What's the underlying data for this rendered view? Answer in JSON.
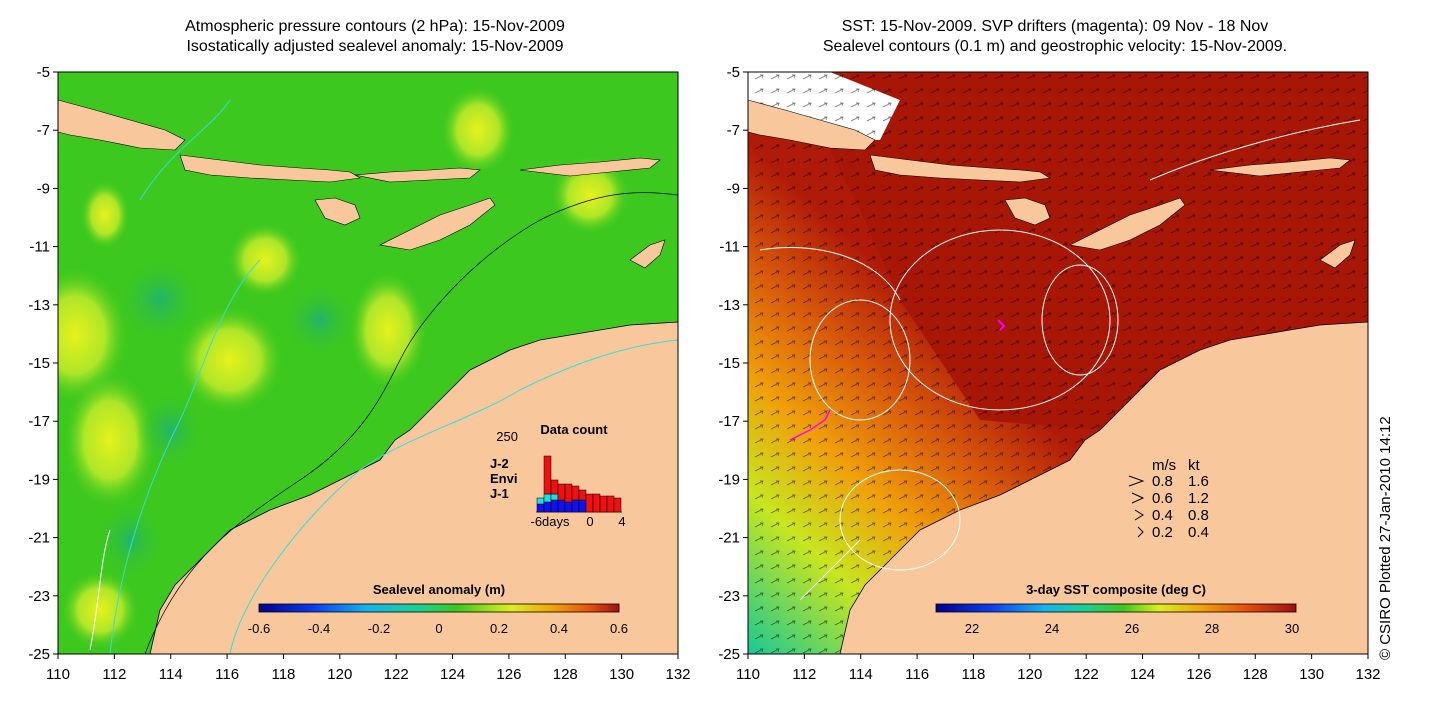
{
  "left_panel": {
    "title_line1": "Atmospheric pressure contours (2 hPa): 15-Nov-2009",
    "title_line2": "Isostatically adjusted sealevel anomaly: 15-Nov-2009",
    "colorbar": {
      "title": "Sealevel anomaly (m)",
      "ticks": [
        "-0.6",
        "-0.4",
        "-0.2",
        "0",
        "0.2",
        "0.4",
        "0.6"
      ]
    },
    "data_count_inset": {
      "title": "Data count",
      "ymax_label": "250",
      "x_labels": [
        "-6days",
        "0",
        "4"
      ],
      "legend": [
        {
          "label": "J-2",
          "color": "#ee1111"
        },
        {
          "label": "Envi",
          "color": "#22dddd"
        },
        {
          "label": "J-1",
          "color": "#1111ee"
        }
      ]
    }
  },
  "right_panel": {
    "title_line1": "SST: 15-Nov-2009. SVP drifters (magenta): 09 Nov - 18 Nov",
    "title_line2": "Sealevel contours (0.1 m) and geostrophic velocity: 15-Nov-2009.",
    "colorbar": {
      "title": "3-day SST composite (deg C)",
      "ticks": [
        "22",
        "24",
        "26",
        "28",
        "30"
      ]
    },
    "velocity_legend": {
      "header_ms": "m/s",
      "header_kt": "kt",
      "rows": [
        {
          "ms": "0.8",
          "kt": "1.6"
        },
        {
          "ms": "0.6",
          "kt": "1.2"
        },
        {
          "ms": "0.4",
          "kt": "0.8"
        },
        {
          "ms": "0.2",
          "kt": "0.4"
        }
      ]
    }
  },
  "credit": "© CSIRO Plotted 27-Jan-2010 14:12",
  "axes": {
    "y_labels": [
      "-5",
      "-7",
      "-9",
      "-11",
      "-13",
      "-15",
      "-17",
      "-19",
      "-21",
      "-23",
      "-25"
    ],
    "x_labels": [
      "110",
      "112",
      "114",
      "116",
      "118",
      "120",
      "122",
      "124",
      "126",
      "128",
      "130",
      "132"
    ]
  },
  "colors": {
    "land": "#f8c89c",
    "sla_field": "#3cc81e",
    "sst_warm": "#b01a08"
  }
}
